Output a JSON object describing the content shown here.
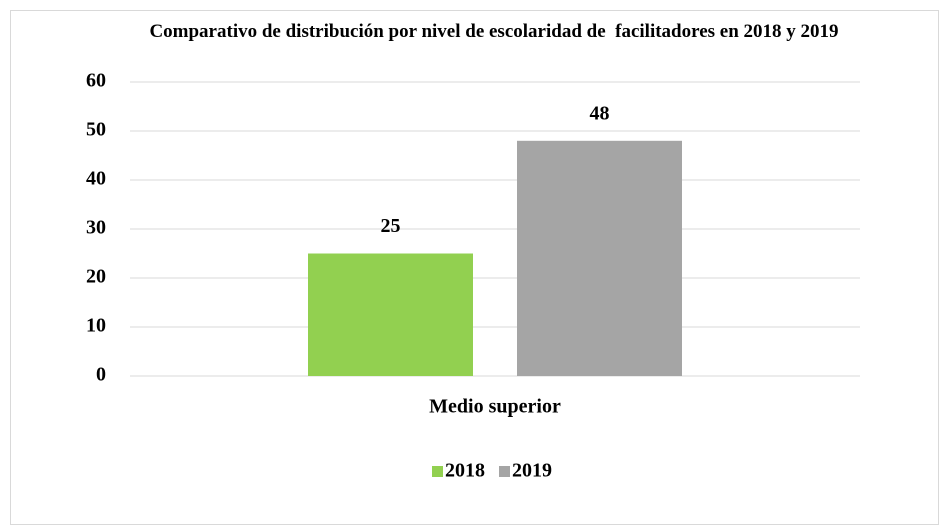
{
  "chart_data": {
    "type": "bar",
    "title": "Comparativo de distribución por nivel de escolaridad de  facilitadores en 2018 y 2019",
    "categories": [
      "Medio superior"
    ],
    "series": [
      {
        "name": "2018",
        "color": "#92d050",
        "values": [
          25
        ]
      },
      {
        "name": "2019",
        "color": "#a5a5a5",
        "values": [
          48
        ]
      }
    ],
    "ylim": [
      0,
      60
    ],
    "yticks": [
      0,
      10,
      20,
      30,
      40,
      50,
      60
    ],
    "grid": true,
    "legend": "bottom"
  }
}
